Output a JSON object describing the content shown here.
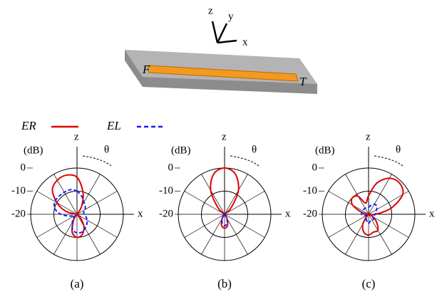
{
  "illustration": {
    "axes": [
      "z",
      "y",
      "x"
    ],
    "ports": [
      "F",
      "T"
    ]
  },
  "chart_data": [
    {
      "type": "polar",
      "caption": "(a)",
      "unit": "(dB)",
      "zenith": "z",
      "horizon": "x",
      "angle_label": "θ",
      "theta": [
        0,
        15,
        30,
        45,
        60,
        75,
        90,
        105,
        120,
        135,
        150,
        165,
        180,
        195,
        210,
        225,
        240,
        255,
        270,
        285,
        300,
        315,
        330,
        345
      ],
      "rlim": [
        -20,
        0
      ],
      "rticks": [
        -20,
        -10,
        0
      ],
      "spokes": 30,
      "series": [
        {
          "name": "ER",
          "color": "#e00000",
          "dash": false,
          "values": [
            -4,
            -10,
            -16,
            -20,
            -20,
            -20,
            -20,
            -20,
            -20,
            -18,
            -14,
            -11,
            -10,
            -12,
            -17,
            -20,
            -20,
            -20,
            -20,
            -15,
            -10,
            -5,
            -3,
            -2.5
          ]
        },
        {
          "name": "EL",
          "color": "#1a1aff",
          "dash": true,
          "values": [
            -10,
            -12,
            -14,
            -15,
            -16,
            -17,
            -17,
            -16,
            -15,
            -14,
            -13,
            -12,
            -12,
            -13,
            -16,
            -18,
            -19,
            -17,
            -13,
            -10,
            -9,
            -9,
            -9,
            -9
          ]
        }
      ]
    },
    {
      "type": "polar",
      "caption": "(b)",
      "unit": "(dB)",
      "zenith": "z",
      "horizon": "x",
      "angle_label": "θ",
      "theta": [
        0,
        15,
        30,
        45,
        60,
        75,
        90,
        105,
        120,
        135,
        150,
        165,
        180,
        195,
        210,
        225,
        240,
        255,
        270,
        285,
        300,
        315,
        330,
        345
      ],
      "rlim": [
        -20,
        0
      ],
      "rticks": [
        -20,
        -10,
        0
      ],
      "spokes": 30,
      "series": [
        {
          "name": "ER",
          "color": "#e00000",
          "dash": false,
          "values": [
            0,
            -2,
            -8,
            -16,
            -20,
            -20,
            -20,
            -20,
            -20,
            -20,
            -18,
            -15,
            -14,
            -15,
            -18,
            -20,
            -20,
            -20,
            -20,
            -20,
            -20,
            -16,
            -8,
            -2
          ]
        },
        {
          "name": "EL",
          "color": "#1a1aff",
          "dash": true,
          "values": [
            -20,
            -20,
            -20,
            -20,
            -20,
            -20,
            -20,
            -20,
            -20,
            -20,
            -18,
            -16,
            -15,
            -16,
            -18,
            -20,
            -20,
            -20,
            -20,
            -20,
            -20,
            -20,
            -20,
            -20
          ]
        }
      ]
    },
    {
      "type": "polar",
      "caption": "(c)",
      "unit": "(dB)",
      "zenith": "z",
      "horizon": "x",
      "angle_label": "θ",
      "theta": [
        0,
        15,
        30,
        45,
        60,
        75,
        90,
        105,
        120,
        135,
        150,
        165,
        180,
        195,
        210,
        225,
        240,
        255,
        270,
        285,
        300,
        315,
        330,
        345
      ],
      "rlim": [
        -20,
        0
      ],
      "rticks": [
        -20,
        -10,
        0
      ],
      "spokes": 30,
      "series": [
        {
          "name": "ER",
          "color": "#e00000",
          "dash": false,
          "values": [
            -12,
            -6,
            -2,
            -1,
            -3,
            -10,
            -17,
            -20,
            -18,
            -15,
            -12,
            -12,
            -11,
            -12,
            -15,
            -19,
            -20,
            -20,
            -20,
            -17,
            -12,
            -10,
            -11,
            -15
          ]
        },
        {
          "name": "EL",
          "color": "#1a1aff",
          "dash": true,
          "values": [
            -17,
            -16,
            -15,
            -15,
            -16,
            -17,
            -17,
            -18,
            -18,
            -17,
            -17,
            -17,
            -16,
            -17,
            -18,
            -19,
            -19,
            -18,
            -17,
            -17,
            -17,
            -17,
            -17,
            -17
          ]
        }
      ]
    }
  ]
}
